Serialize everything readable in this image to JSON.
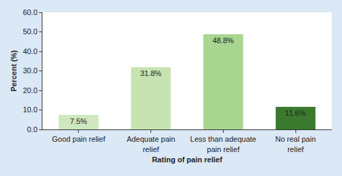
{
  "chart_data": {
    "type": "bar",
    "x_label": "Rating of pain relief",
    "y_label": "Percent (%)",
    "categories": [
      "Good pain relief",
      "Adequate pain relief",
      "Less than adequate pain relief",
      "No real pain relief"
    ],
    "values": [
      7.5,
      31.8,
      48.8,
      11.6
    ],
    "value_labels": [
      "7.5%",
      "31.8%",
      "48.8%",
      "11.6%"
    ],
    "colors": [
      "#cfe8bf",
      "#c6e3b1",
      "#a8d590",
      "#3b7a2e"
    ],
    "ylim": [
      0,
      60
    ],
    "yticks": [
      {
        "value": 0,
        "label": "0.0"
      },
      {
        "value": 10,
        "label": "10.0"
      },
      {
        "value": 20,
        "label": "20.0"
      },
      {
        "value": 30,
        "label": "30.0"
      },
      {
        "value": 40,
        "label": "40.0"
      },
      {
        "value": 50,
        "label": "50.0"
      },
      {
        "value": 60,
        "label": "60.0"
      }
    ],
    "grid": false,
    "data_labels": true
  }
}
